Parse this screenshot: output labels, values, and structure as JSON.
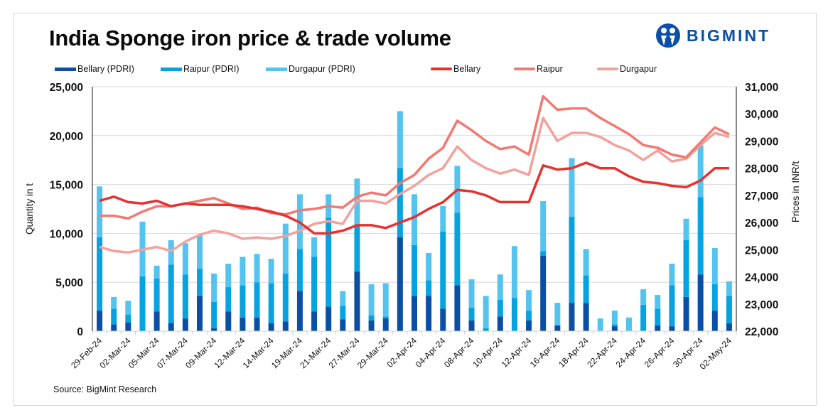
{
  "header": {
    "title": "India Sponge iron price & trade volume",
    "logo_text": "BIGMINT"
  },
  "footer": {
    "source": "Source: BigMint Research"
  },
  "colors": {
    "bellary_pdri": "#0a4fa3",
    "raipur_pdri": "#06a3e0",
    "durgapur_pdri": "#55c3f0",
    "bellary_price": "#e8302f",
    "raipur_price": "#f07a73",
    "durgapur_price": "#f2a19c",
    "brand": "#0a4fa8"
  },
  "chart_data": {
    "type": "bar",
    "title": "India Sponge iron price & trade volume",
    "xlabel": "",
    "ylabel": "Quantity in t",
    "y2label": "Prices in INR/t",
    "ylim": [
      0,
      25000
    ],
    "y2lim": [
      22000,
      31000
    ],
    "yticks": [
      "0",
      "5,000",
      "10,000",
      "15,000",
      "20,000",
      "25,000"
    ],
    "y2ticks": [
      "22,000",
      "23,000",
      "24,000",
      "25,000",
      "26,000",
      "27,000",
      "28,000",
      "29,000",
      "30,000",
      "31,000"
    ],
    "grid": true,
    "legend_position": "top",
    "stacked": true,
    "n_categories": 45,
    "x_tick_labels": [
      "29-Feb-24",
      "02-Mar-24",
      "05-Mar-24",
      "07-Mar-24",
      "09-Mar-24",
      "12-Mar-24",
      "14-Mar-24",
      "19-Mar-24",
      "21-Mar-24",
      "27-Mar-24",
      "29-Mar-24",
      "02-Apr-24",
      "04-Apr-24",
      "08-Apr-24",
      "10-Apr-24",
      "12-Apr-24",
      "16-Apr-24",
      "18-Apr-24",
      "22-Apr-24",
      "24-Apr-24",
      "26-Apr-24",
      "30-Apr-24",
      "02-May-24"
    ],
    "x_tick_every": 2,
    "bar_series": [
      {
        "name": "Bellary (PDRI)",
        "axis": "left",
        "values": [
          2100,
          700,
          900,
          0,
          2000,
          800,
          1300,
          3600,
          300,
          2000,
          1400,
          1400,
          800,
          1000,
          4100,
          2000,
          2500,
          1200,
          6100,
          1100,
          1300,
          9600,
          3600,
          3600,
          2300,
          4700,
          1100,
          0,
          1500,
          0,
          1100,
          7700,
          600,
          2900,
          2900,
          0,
          500,
          0,
          0,
          600,
          500,
          3500,
          5800,
          2100,
          800
        ]
      },
      {
        "name": "Raipur (PDRI)",
        "axis": "left",
        "values": [
          7500,
          1600,
          800,
          5600,
          3400,
          6000,
          4500,
          2800,
          2700,
          2500,
          3300,
          3600,
          4100,
          4900,
          4300,
          5600,
          9100,
          1400,
          4800,
          500,
          200,
          7100,
          5200,
          1600,
          7900,
          7400,
          1300,
          300,
          1700,
          3400,
          1000,
          500,
          0,
          8800,
          2800,
          0,
          200,
          0,
          2700,
          1700,
          4200,
          5800,
          7900,
          2700,
          2800
        ]
      },
      {
        "name": "Durgapur (PDRI)",
        "axis": "left",
        "values": [
          5200,
          1200,
          1400,
          5600,
          1300,
          2500,
          3200,
          3400,
          2900,
          2400,
          2900,
          2900,
          2500,
          5100,
          5600,
          2000,
          2400,
          1500,
          4700,
          3200,
          3400,
          5800,
          5200,
          2800,
          2600,
          4800,
          2900,
          3300,
          2600,
          5300,
          2100,
          5100,
          2300,
          6000,
          2700,
          1300,
          1400,
          1400,
          1600,
          1400,
          2200,
          2200,
          5300,
          3700,
          1500
        ]
      }
    ],
    "line_series": [
      {
        "name": "Bellary",
        "axis": "right",
        "values": [
          26800,
          26950,
          26750,
          26700,
          26800,
          26600,
          26700,
          26650,
          26650,
          26650,
          26600,
          26500,
          26400,
          26250,
          26000,
          25600,
          25600,
          25700,
          25900,
          25900,
          25800,
          26000,
          26200,
          26500,
          26750,
          27200,
          27150,
          27000,
          26750,
          26750,
          26750,
          28100,
          27950,
          28000,
          28200,
          28000,
          28000,
          27700,
          27500,
          27450,
          27350,
          27300,
          27550,
          28000,
          28000
        ]
      },
      {
        "name": "Raipur",
        "axis": "right",
        "values": [
          26250,
          26250,
          26150,
          26400,
          26600,
          26600,
          26700,
          26800,
          26900,
          26700,
          26500,
          26550,
          26350,
          26300,
          26450,
          26500,
          26600,
          26550,
          26950,
          27100,
          27000,
          27450,
          27750,
          28350,
          28750,
          29750,
          29400,
          29000,
          28700,
          28800,
          28500,
          30650,
          30150,
          30200,
          30200,
          29850,
          29550,
          29250,
          28850,
          28750,
          28500,
          28400,
          28950,
          29500,
          29250
        ]
      },
      {
        "name": "Durgapur",
        "axis": "right",
        "values": [
          25100,
          24950,
          24900,
          25000,
          25100,
          24950,
          25300,
          25550,
          25700,
          25600,
          25400,
          25450,
          25400,
          25500,
          25700,
          25950,
          26050,
          25950,
          26800,
          26800,
          26700,
          27050,
          27350,
          27750,
          28000,
          28800,
          28300,
          28000,
          27800,
          27950,
          27750,
          29850,
          29000,
          29300,
          29300,
          29150,
          28850,
          28650,
          28300,
          28650,
          28250,
          28350,
          28850,
          29300,
          29150
        ]
      }
    ]
  }
}
